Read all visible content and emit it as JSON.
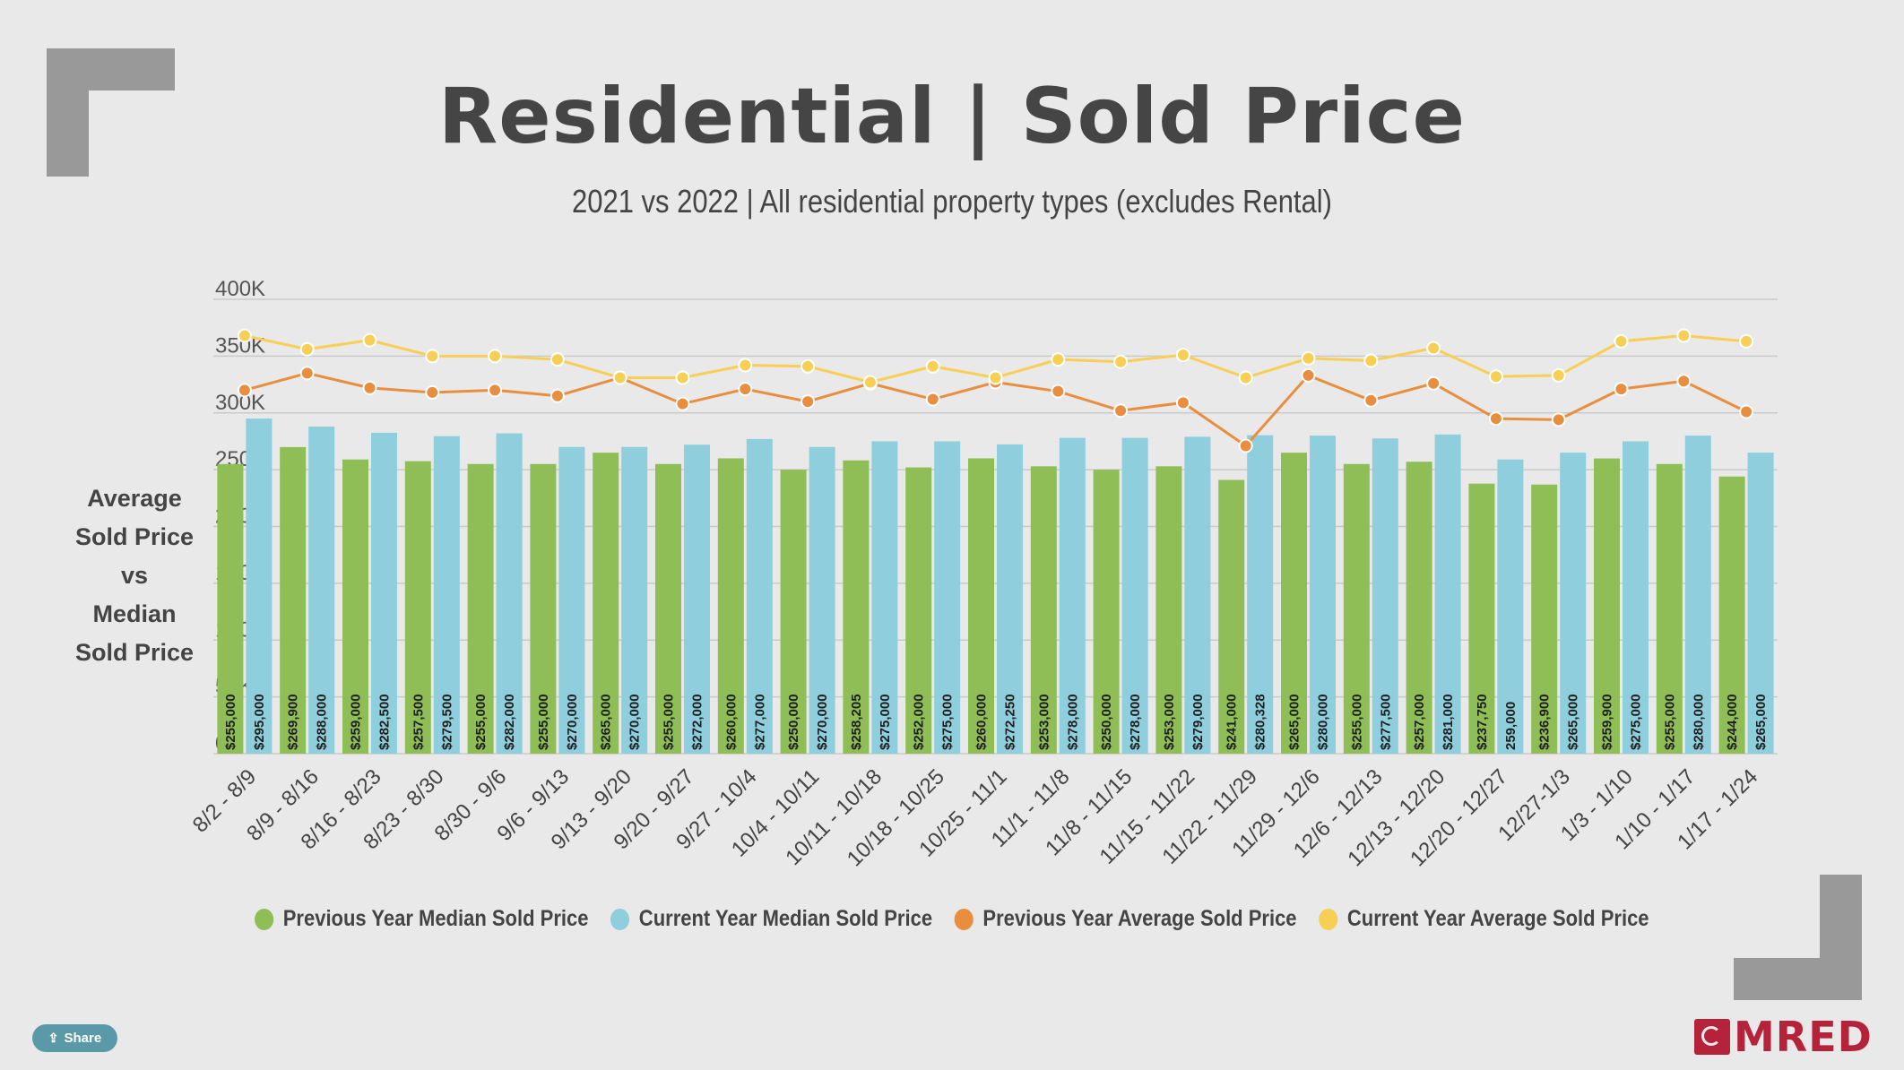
{
  "header": {
    "title": "Residential | Sold Price",
    "subtitle": "2021 vs 2022 | All residential property types (excludes Rental)"
  },
  "y_axis_title_lines": [
    "Average",
    "Sold Price",
    "vs",
    "Median",
    "Sold Price"
  ],
  "share_label": "Share",
  "logo_text": "MRED",
  "chart_data": {
    "type": "bar",
    "ylim": [
      0,
      400000
    ],
    "y_ticks": [
      0,
      50000,
      100000,
      150000,
      200000,
      250000,
      300000,
      350000,
      400000
    ],
    "y_tick_labels": [
      "0",
      "50K",
      "100K",
      "150K",
      "200K",
      "250K",
      "300K",
      "350K",
      "400K"
    ],
    "grid": true,
    "legend_position": "bottom",
    "categories": [
      "8/2 - 8/9",
      "8/9 - 8/16",
      "8/16 - 8/23",
      "8/23 - 8/30",
      "8/30 - 9/6",
      "9/6 - 9/13",
      "9/13 - 9/20",
      "9/20 - 9/27",
      "9/27 - 10/4",
      "10/4 - 10/11",
      "10/11 - 10/18",
      "10/18 - 10/25",
      "10/25 - 11/1",
      "11/1 - 11/8",
      "11/8 - 11/15",
      "11/15 - 11/22",
      "11/22 - 11/29",
      "11/29 - 12/6",
      "12/6 - 12/13",
      "12/13 - 12/20",
      "12/20 - 12/27",
      "12/27-1/3",
      "1/3 - 1/10",
      "1/10 - 1/17",
      "1/17 - 1/24"
    ],
    "series": [
      {
        "name": "Previous Year Median Sold Price",
        "kind": "bar",
        "color": "#8fbe56",
        "values": [
          255000,
          269900,
          259000,
          257500,
          255000,
          255000,
          265000,
          255000,
          260000,
          250000,
          258205,
          252000,
          260000,
          253000,
          250000,
          253000,
          241000,
          265000,
          255000,
          257000,
          237750,
          236900,
          259900,
          255000,
          244000
        ],
        "labels": [
          "$255,000",
          "$269,900",
          "$259,000",
          "$257,500",
          "$255,000",
          "$255,000",
          "$265,000",
          "$255,000",
          "$260,000",
          "$250,000",
          "$258,205",
          "$252,000",
          "$260,000",
          "$253,000",
          "$250,000",
          "$253,000",
          "$241,000",
          "$265,000",
          "$255,000",
          "$257,000",
          "$237,750",
          "$236,900",
          "$259,900",
          "$255,000",
          "$244,000"
        ]
      },
      {
        "name": "Current Year Median Sold Price",
        "kind": "bar",
        "color": "#8ecedd",
        "values": [
          295000,
          288000,
          282500,
          279500,
          282000,
          270000,
          270000,
          272000,
          277000,
          270000,
          275000,
          275000,
          272250,
          278000,
          278000,
          279000,
          280328,
          280000,
          277500,
          281000,
          259000,
          265000,
          275000,
          280000,
          265000
        ],
        "labels": [
          "$295,000",
          "$288,000",
          "$282,500",
          "$279,500",
          "$282,000",
          "$270,000",
          "$270,000",
          "$272,000",
          "$277,000",
          "$270,000",
          "$275,000",
          "$275,000",
          "$272,250",
          "$278,000",
          "$278,000",
          "$279,000",
          "$280,328",
          "$280,000",
          "$277,500",
          "$281,000",
          "259,000",
          "$265,000",
          "$275,000",
          "$280,000",
          "$265,000"
        ]
      },
      {
        "name": "Previous Year Average Sold Price",
        "kind": "line",
        "color": "#e98e3e",
        "values": [
          320000,
          335000,
          322000,
          318000,
          320000,
          315000,
          331000,
          308000,
          321000,
          310000,
          326000,
          312000,
          327000,
          319000,
          302000,
          309000,
          271000,
          333000,
          311000,
          326000,
          295000,
          294000,
          321000,
          328000,
          301000
        ]
      },
      {
        "name": "Current Year Average Sold Price",
        "kind": "line",
        "color": "#f8cf55",
        "values": [
          368000,
          356000,
          364000,
          350000,
          350000,
          347000,
          331000,
          331000,
          342000,
          341000,
          327000,
          341000,
          331000,
          347000,
          345000,
          351000,
          331000,
          348000,
          346000,
          357000,
          332000,
          333000,
          363000,
          368000,
          363000
        ]
      }
    ]
  }
}
